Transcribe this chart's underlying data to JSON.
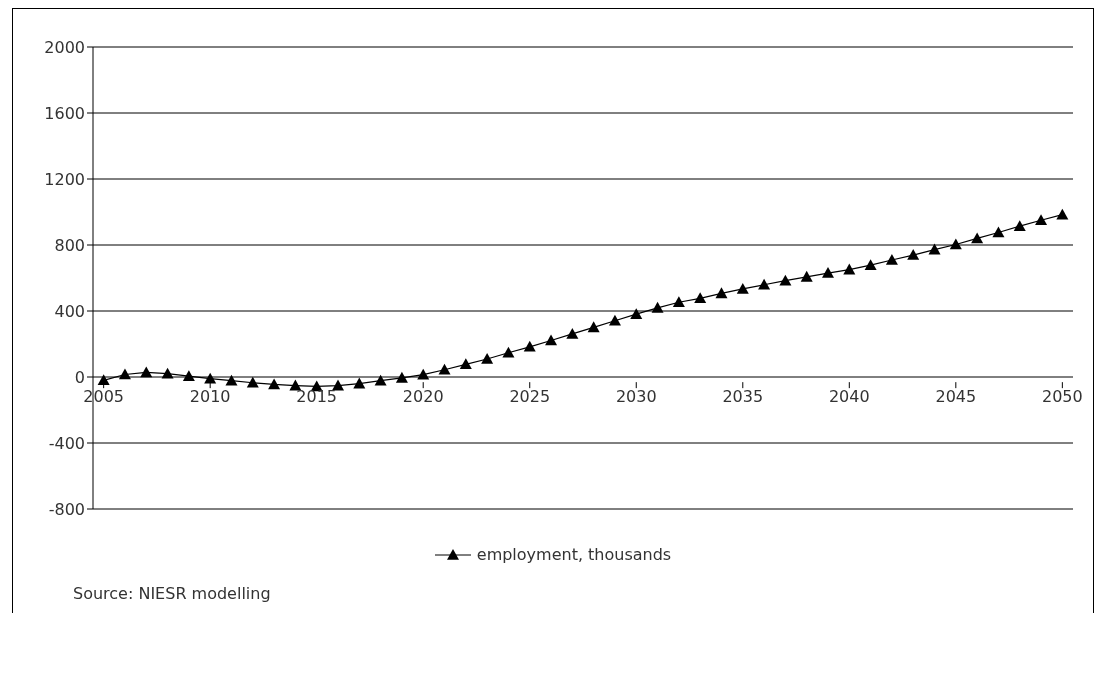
{
  "chart_data": {
    "type": "line",
    "x": [
      2005,
      2006,
      2007,
      2008,
      2009,
      2010,
      2011,
      2012,
      2013,
      2014,
      2015,
      2016,
      2017,
      2018,
      2019,
      2020,
      2021,
      2022,
      2023,
      2024,
      2025,
      2026,
      2027,
      2028,
      2029,
      2030,
      2031,
      2032,
      2033,
      2034,
      2035,
      2036,
      2037,
      2038,
      2039,
      2040,
      2041,
      2042,
      2043,
      2044,
      2045,
      2046,
      2047,
      2048,
      2049,
      2050
    ],
    "series": [
      {
        "name": "employment, thousands",
        "color": "#000000",
        "values": [
          -20,
          15,
          28,
          20,
          5,
          -10,
          -22,
          -35,
          -45,
          -52,
          -57,
          -52,
          -40,
          -22,
          -5,
          14,
          44,
          77,
          109,
          147,
          183,
          221,
          261,
          301,
          341,
          381,
          419,
          453,
          477,
          507,
          534,
          559,
          584,
          607,
          630,
          651,
          678,
          709,
          739,
          772,
          803,
          840,
          876,
          914,
          950,
          984
        ]
      }
    ],
    "xlim": [
      2004.5,
      2050.5
    ],
    "xticks": [
      2005,
      2010,
      2015,
      2020,
      2025,
      2030,
      2035,
      2040,
      2045,
      2050
    ],
    "ylim": [
      -800,
      2000
    ],
    "yticks": [
      -800,
      -400,
      0,
      400,
      800,
      1200,
      1600,
      2000
    ],
    "grid": "y",
    "legend": "bottom",
    "marker": "triangle",
    "line_style": "solid",
    "annotations": [
      "Source: NIESR modelling"
    ]
  }
}
